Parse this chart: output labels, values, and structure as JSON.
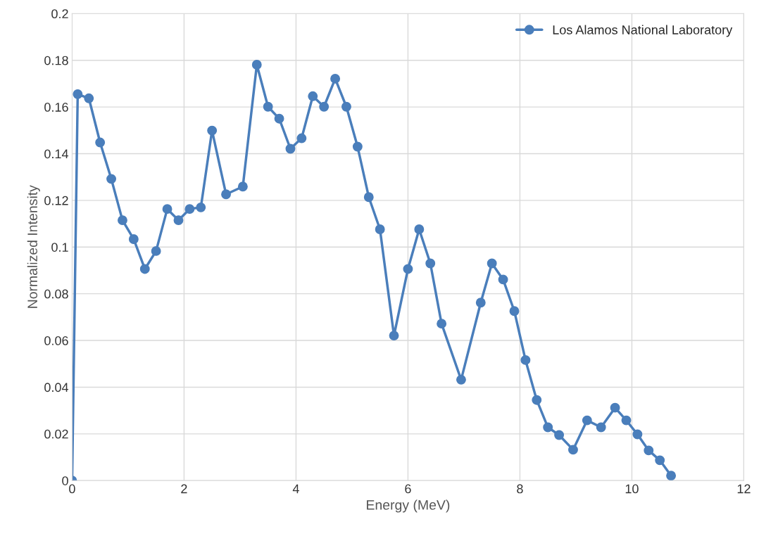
{
  "chart_data": {
    "type": "line",
    "xlabel": "Energy (MeV)",
    "ylabel": "Normalized Intensity",
    "xlim": [
      0,
      12
    ],
    "xticks": [
      0,
      2,
      4,
      6,
      8,
      10,
      12
    ],
    "ylim": [
      0,
      0.2
    ],
    "yticks": [
      0,
      0.02,
      0.04,
      0.06,
      0.08,
      0.1,
      0.12,
      0.14,
      0.16,
      0.18,
      0.2
    ],
    "grid": true,
    "legend": "top right",
    "marker": "circle",
    "line_style": "solid",
    "series": [
      {
        "name": "Los Alamos National Laboratory",
        "color": "#4a7ebb",
        "x": [
          0,
          0.1,
          0.3,
          0.5,
          0.7,
          0.9,
          1.1,
          1.3,
          1.5,
          1.7,
          1.9,
          2.1,
          2.3,
          2.5,
          2.75,
          3.05,
          3.3,
          3.5,
          3.7,
          3.9,
          4.1,
          4.3,
          4.5,
          4.7,
          4.9,
          5.1,
          5.3,
          5.5,
          5.75,
          6.0,
          6.2,
          6.4,
          6.6,
          6.95,
          7.3,
          7.5,
          7.7,
          7.9,
          8.1,
          8.3,
          8.5,
          8.7,
          8.95,
          9.2,
          9.45,
          9.7,
          9.9,
          10.1,
          10.3,
          10.5,
          10.7
        ],
        "values": [
          0,
          0.1655,
          0.1637,
          0.1448,
          0.1292,
          0.1115,
          0.1034,
          0.0906,
          0.0983,
          0.1163,
          0.1115,
          0.1163,
          0.117,
          0.1499,
          0.1226,
          0.1259,
          0.1781,
          0.1601,
          0.155,
          0.1421,
          0.1466,
          0.1646,
          0.1601,
          0.1721,
          0.1601,
          0.143,
          0.1214,
          0.1076,
          0.0621,
          0.0906,
          0.1076,
          0.093,
          0.0672,
          0.0432,
          0.0762,
          0.093,
          0.0861,
          0.0726,
          0.0516,
          0.0345,
          0.0228,
          0.0195,
          0.0132,
          0.0258,
          0.0228,
          0.0312,
          0.0258,
          0.0198,
          0.0129,
          0.0087,
          0.0021
        ]
      }
    ]
  }
}
